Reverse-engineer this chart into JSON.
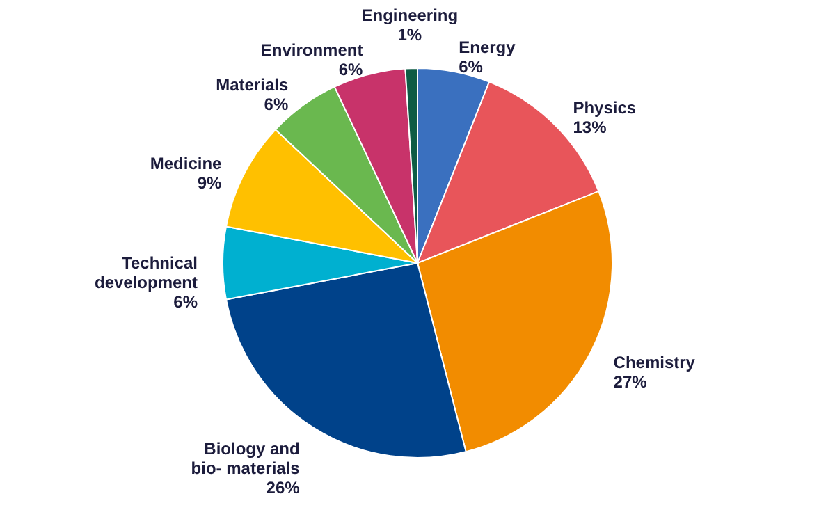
{
  "chart_data": {
    "type": "pie",
    "categories": [
      "Energy",
      "Physics",
      "Chemistry",
      "Biology and bio- materials",
      "Technical development",
      "Medicine",
      "Materials",
      "Environment",
      "Engineering"
    ],
    "values": [
      6,
      13,
      27,
      26,
      6,
      9,
      6,
      6,
      1
    ],
    "colors": [
      "#3a70bf",
      "#e8555a",
      "#f28c00",
      "#00428a",
      "#00b0d0",
      "#ffc000",
      "#6ab84f",
      "#c8336a",
      "#0e5c45"
    ],
    "value_labels": [
      "6%",
      "13%",
      "27%",
      "26%",
      "6%",
      "9%",
      "6%",
      "6%",
      "1%"
    ]
  }
}
